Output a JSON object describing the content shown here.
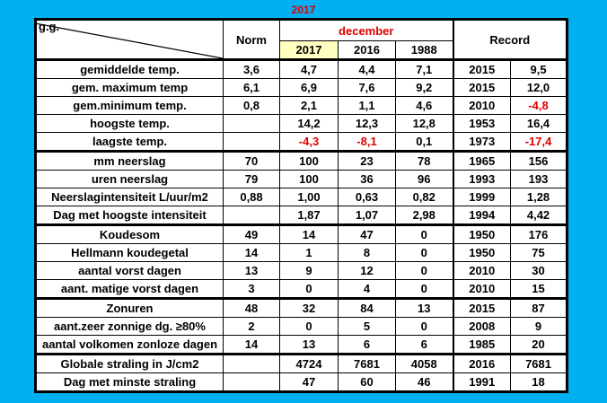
{
  "title": "2017",
  "header": {
    "corner": "g.g.",
    "norm": "Norm",
    "period": "december",
    "years": [
      "2017",
      "2016",
      "1988"
    ],
    "record": "Record"
  },
  "table": {
    "groups": [
      [
        [
          "gemiddelde temp.",
          "3,6",
          "4,7",
          "4,4",
          "7,1",
          "2015",
          "9,5"
        ],
        [
          "gem. maximum temp",
          "6,1",
          "6,9",
          "7,6",
          "9,2",
          "2015",
          "12,0"
        ],
        [
          "gem.minimum temp.",
          "0,8",
          "2,1",
          "1,1",
          "4,6",
          "2010",
          "-4,8"
        ],
        [
          "hoogste temp.",
          null,
          "14,2",
          "12,3",
          "12,8",
          "1953",
          "16,4"
        ],
        [
          "laagste temp.",
          null,
          "-4,3",
          "-8,1",
          "0,1",
          "1973",
          "-17,4"
        ]
      ],
      [
        [
          "mm neerslag",
          "70",
          "100",
          "23",
          "78",
          "1965",
          "156"
        ],
        [
          "uren neerslag",
          "79",
          "100",
          "36",
          "96",
          "1993",
          "193"
        ],
        [
          "Neerslagintensiteit L/uur/m2",
          "0,88",
          "1,00",
          "0,63",
          "0,82",
          "1999",
          "1,28"
        ],
        [
          "Dag met hoogste intensiteit",
          null,
          "1,87",
          "1,07",
          "2,98",
          "1994",
          "4,42"
        ]
      ],
      [
        [
          "Koudesom",
          "49",
          "14",
          "47",
          "0",
          "1950",
          "176"
        ],
        [
          "Hellmann koudegetal",
          "14",
          "1",
          "8",
          "0",
          "1950",
          "75"
        ],
        [
          "aantal vorst dagen",
          "13",
          "9",
          "12",
          "0",
          "2010",
          "30"
        ],
        [
          "aant. matige vorst dagen",
          "3",
          "0",
          "4",
          "0",
          "2010",
          "15"
        ]
      ],
      [
        [
          "Zonuren",
          "48",
          "32",
          "84",
          "13",
          "2015",
          "87"
        ],
        [
          "aant.zeer zonnige dg. ≥80%",
          "2",
          "0",
          "5",
          "0",
          "2008",
          "9"
        ],
        [
          "aantal volkomen zonloze dagen",
          "14",
          "13",
          "6",
          "6",
          "1985",
          "20"
        ]
      ],
      [
        [
          "Globale straling in J/cm2",
          null,
          "4724",
          "7681",
          "4058",
          "2016",
          "7681"
        ],
        [
          "Dag met minste straling",
          null,
          "47",
          "60",
          "46",
          "1991",
          "18"
        ]
      ]
    ]
  }
}
